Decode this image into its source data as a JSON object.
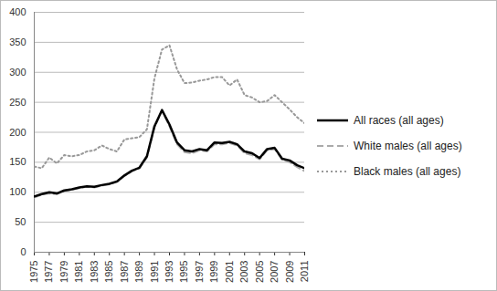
{
  "chart_data": {
    "type": "line",
    "x": [
      1975,
      1976,
      1977,
      1978,
      1979,
      1980,
      1981,
      1982,
      1983,
      1984,
      1985,
      1986,
      1987,
      1988,
      1989,
      1990,
      1991,
      1992,
      1993,
      1994,
      1995,
      1996,
      1997,
      1998,
      1999,
      2000,
      2001,
      2002,
      2003,
      2004,
      2005,
      2006,
      2007,
      2008,
      2009,
      2010,
      2011
    ],
    "series": [
      {
        "name": "All races (all ages)",
        "color": "#000000",
        "line_style": "solid",
        "values": [
          93,
          97,
          100,
          98,
          103,
          105,
          108,
          110,
          109,
          112,
          114,
          118,
          128,
          136,
          141,
          160,
          210,
          237,
          213,
          183,
          170,
          168,
          172,
          170,
          183,
          182,
          184,
          180,
          168,
          165,
          157,
          172,
          174,
          156,
          153,
          145,
          140
        ]
      },
      {
        "name": "White males (all ages)",
        "color": "#aaaaaa",
        "line_style": "dashed",
        "values": [
          91,
          96,
          98,
          97,
          102,
          104,
          107,
          109,
          108,
          111,
          113,
          117,
          127,
          135,
          140,
          158,
          208,
          236,
          210,
          180,
          167,
          165,
          170,
          168,
          180,
          180,
          182,
          178,
          165,
          162,
          155,
          170,
          172,
          154,
          150,
          142,
          135
        ]
      },
      {
        "name": "Black males (all ages)",
        "color": "#999999",
        "line_style": "dotted",
        "values": [
          143,
          140,
          158,
          148,
          162,
          160,
          162,
          168,
          170,
          178,
          172,
          168,
          188,
          190,
          192,
          205,
          290,
          338,
          345,
          305,
          282,
          283,
          286,
          288,
          292,
          292,
          278,
          288,
          262,
          258,
          250,
          252,
          262,
          250,
          238,
          225,
          215
        ]
      }
    ],
    "xlim": [
      1975,
      2011
    ],
    "xticks": [
      1975,
      1977,
      1979,
      1981,
      1983,
      1985,
      1987,
      1989,
      1991,
      1993,
      1995,
      1997,
      1999,
      2001,
      2003,
      2005,
      2007,
      2009,
      2011
    ],
    "ylim": [
      0,
      400
    ],
    "yticks": [
      0,
      50,
      100,
      150,
      200,
      250,
      300,
      350,
      400
    ],
    "grid": true,
    "legend": "right"
  }
}
